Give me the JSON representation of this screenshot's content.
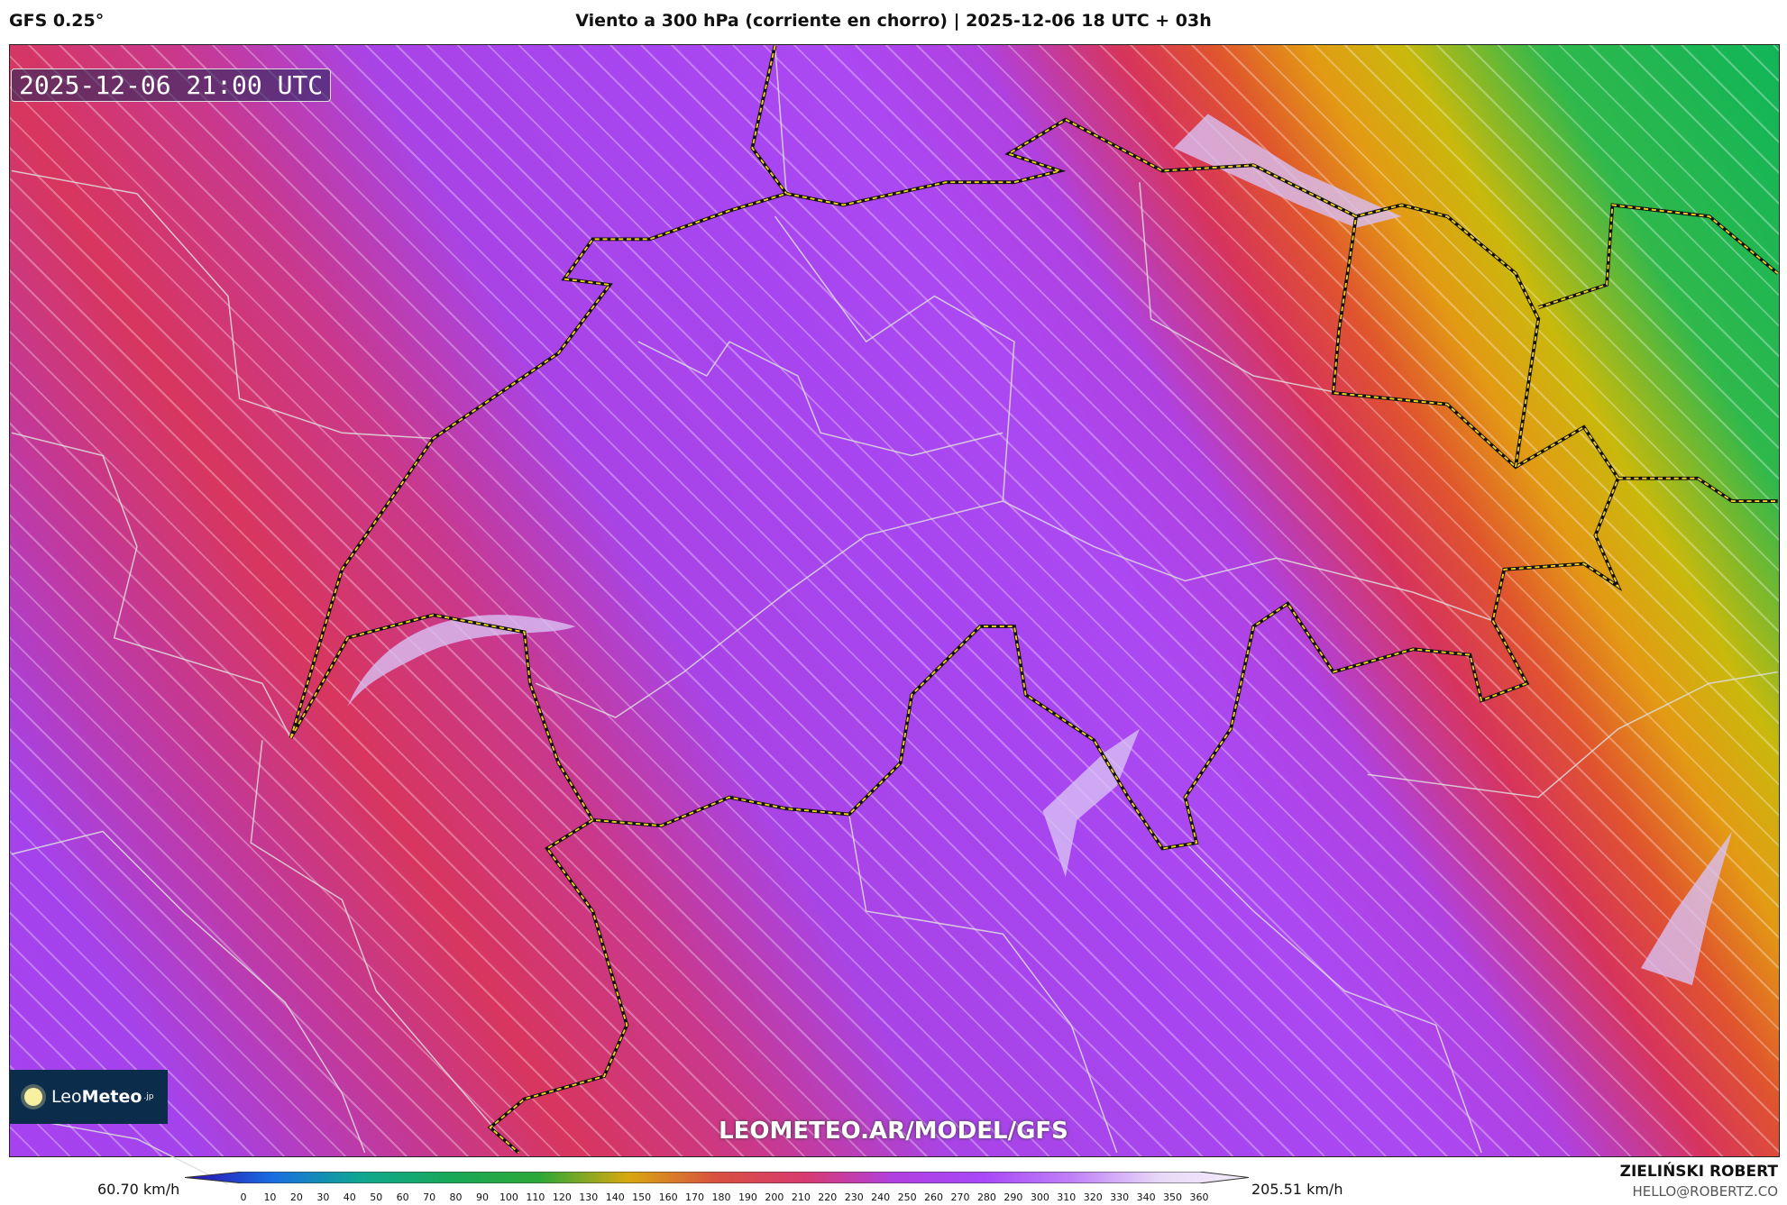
{
  "header": {
    "model": "GFS 0.25°",
    "title": "Viento a 300 hPa (corriente en chorro) | 2025-12-06 18 UTC + 03h"
  },
  "map": {
    "valid_time": "2025-12-06 21:00 UTC",
    "watermark": "LEOMETEO.AR/MODEL/GFS",
    "border_color": "#f2d21a"
  },
  "logo": {
    "prefix": "Leo",
    "name": "Meteo",
    "suffix": ".jp"
  },
  "colorbar": {
    "min_label": "60.70 km/h",
    "max_label": "205.51 km/h",
    "ticks": [
      "0",
      "10",
      "20",
      "30",
      "40",
      "50",
      "60",
      "70",
      "80",
      "90",
      "100",
      "110",
      "120",
      "130",
      "140",
      "150",
      "160",
      "170",
      "180",
      "190",
      "200",
      "210",
      "220",
      "230",
      "240",
      "250",
      "260",
      "270",
      "280",
      "290",
      "300",
      "310",
      "320",
      "330",
      "340",
      "350",
      "360"
    ],
    "colors": [
      "#2a0cb0",
      "#1a6ee0",
      "#10a890",
      "#18a858",
      "#2ca838",
      "#d8a810",
      "#d85040",
      "#d83a70",
      "#b040e0",
      "#a848f8",
      "#c080f8",
      "#e8d8f8",
      "#f4eefa"
    ]
  },
  "author": {
    "name": "ZIELIŃSKI ROBERT",
    "email": "HELLO@ROBERTZ.CO"
  }
}
